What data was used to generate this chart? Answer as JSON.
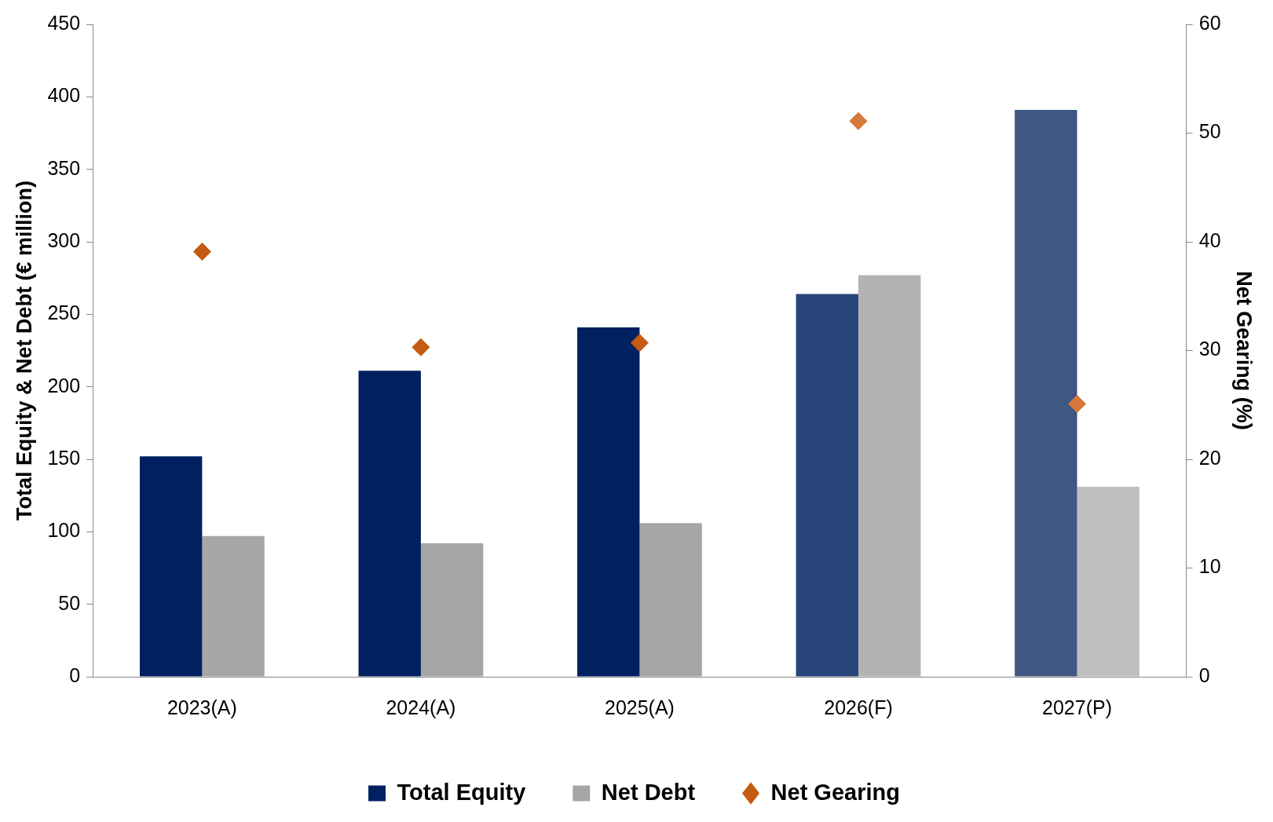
{
  "chart_data": {
    "type": "bar",
    "categories": [
      "2023(A)",
      "2024(A)",
      "2025(A)",
      "2026(F)",
      "2027(P)"
    ],
    "ylabel": "Total Equity & Net Debt (€ million)",
    "y2label": "Net Gearing (%)",
    "ylim": [
      0,
      450
    ],
    "yticks": [
      0,
      50,
      100,
      150,
      200,
      250,
      300,
      350,
      400,
      450
    ],
    "y2lim": [
      0,
      60
    ],
    "y2ticks": [
      0,
      10,
      20,
      30,
      40,
      50,
      60
    ],
    "grid": false,
    "legend": "bottom",
    "marker": "diamond",
    "series": [
      {
        "name": "Total Equity",
        "color": "#002060",
        "colors": [
          "#002060",
          "#002060",
          "#002060",
          "#264478",
          "#3f5783"
        ],
        "values": [
          152,
          211,
          241,
          264,
          391
        ]
      },
      {
        "name": "Net Debt",
        "color": "#a6a6a6",
        "colors": [
          "#a6a6a6",
          "#a6a6a6",
          "#a6a6a6",
          "#b3b3b3",
          "#bfbfbf"
        ],
        "values": [
          97,
          92,
          106,
          277,
          131
        ]
      },
      {
        "name": "Net Gearing",
        "type": "scatter",
        "axis": "y2",
        "color": "#c55a11",
        "colors": [
          "#c55a11",
          "#c55a11",
          "#c55a11",
          "#d5783a",
          "#d5783a"
        ],
        "values": [
          39.1,
          30.3,
          30.7,
          51.1,
          25.1
        ]
      }
    ]
  }
}
